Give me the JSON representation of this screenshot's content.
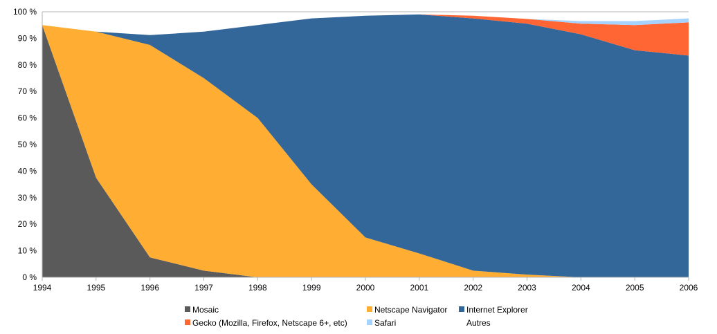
{
  "chart_data": {
    "type": "area",
    "stacked": true,
    "x": [
      1994,
      1995,
      1996,
      1997,
      1998,
      1999,
      2000,
      2001,
      2002,
      2003,
      2004,
      2005,
      2006
    ],
    "x_tick_labels": [
      "1994",
      "1995",
      "1996",
      "1997",
      "1998",
      "1999",
      "2000",
      "2001",
      "2002",
      "2003",
      "2004",
      "2005",
      "2006"
    ],
    "ylim": [
      0,
      100
    ],
    "y_ticks": [
      0,
      10,
      20,
      30,
      40,
      50,
      60,
      70,
      80,
      90,
      100
    ],
    "y_tick_labels": [
      "0 %",
      "10 %",
      "20 %",
      "30 %",
      "40 %",
      "50 %",
      "60 %",
      "70 %",
      "80 %",
      "90 %",
      "100 %"
    ],
    "grid": true,
    "legend_position": "bottom",
    "series": [
      {
        "name": "Mosaic",
        "color": "#5a5a5a",
        "values": [
          95,
          37.5,
          7.5,
          2.5,
          0,
          0,
          0,
          0,
          0,
          0,
          0,
          0,
          0
        ]
      },
      {
        "name": "Netscape Navigator",
        "color": "#ffae33",
        "values": [
          0,
          55,
          80,
          72.5,
          60,
          35,
          15,
          9,
          2.5,
          1,
          0,
          0,
          0
        ]
      },
      {
        "name": "Internet Explorer",
        "color": "#336699",
        "values": [
          0,
          0,
          3.7,
          17.5,
          35,
          62.5,
          83.5,
          90,
          95,
          94.5,
          91.5,
          85.5,
          83.5
        ]
      },
      {
        "name": "Gecko (Mozilla, Firefox, Netscape 6+, etc)",
        "color": "#ff6633",
        "values": [
          0,
          0,
          0,
          0,
          0,
          0,
          0,
          0,
          1,
          1.8,
          4,
          9.5,
          12.5
        ]
      },
      {
        "name": "Safari",
        "color": "#a6d2ff",
        "values": [
          0,
          0,
          0,
          0,
          0,
          0,
          0,
          0,
          0,
          0,
          1,
          1.5,
          1.5
        ]
      },
      {
        "name": "Autres",
        "color": "#ffffff",
        "values": [
          0,
          0,
          0,
          0,
          0,
          0,
          0,
          0,
          0,
          0,
          0,
          0,
          0
        ]
      }
    ]
  }
}
